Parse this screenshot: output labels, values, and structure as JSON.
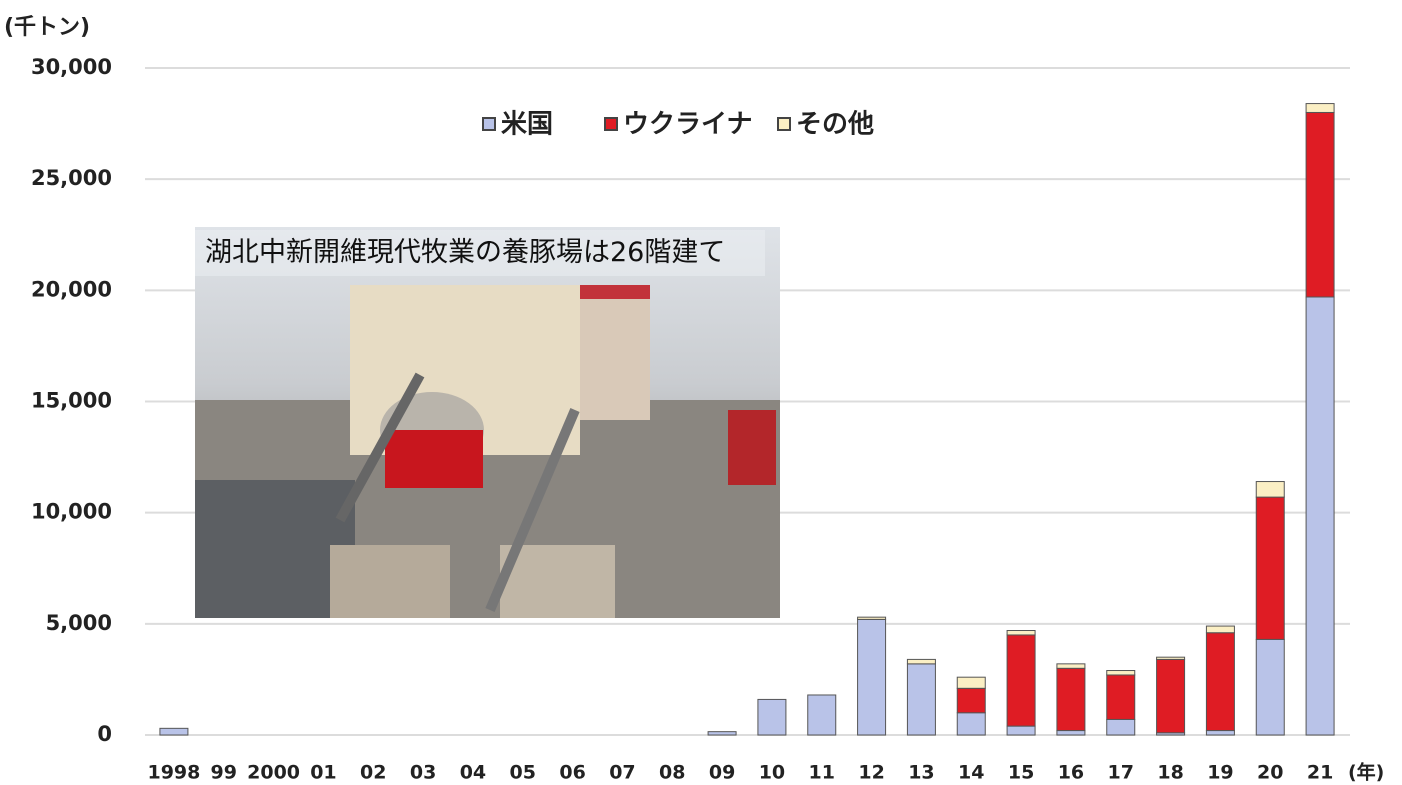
{
  "chart_data": {
    "type": "bar",
    "stacked": true,
    "y_label": "(千トン)",
    "x_label": "(年)",
    "categories": [
      "1998",
      "99",
      "2000",
      "01",
      "02",
      "03",
      "04",
      "05",
      "06",
      "07",
      "08",
      "09",
      "10",
      "11",
      "12",
      "13",
      "14",
      "15",
      "16",
      "17",
      "18",
      "19",
      "20",
      "21"
    ],
    "series": [
      {
        "name": "米国",
        "color": "#b9c3e8",
        "values": [
          300,
          0,
          0,
          0,
          0,
          0,
          0,
          0,
          0,
          0,
          0,
          150,
          1600,
          1800,
          5200,
          3200,
          1000,
          400,
          200,
          700,
          100,
          200,
          4300,
          19700
        ]
      },
      {
        "name": "ウクライナ",
        "color": "#df1c24",
        "values": [
          0,
          0,
          0,
          0,
          0,
          0,
          0,
          0,
          0,
          0,
          0,
          0,
          0,
          0,
          0,
          0,
          1100,
          4100,
          2800,
          2000,
          3300,
          4400,
          6400,
          8300
        ]
      },
      {
        "name": "その他",
        "color": "#fbefc4",
        "values": [
          0,
          0,
          0,
          0,
          0,
          0,
          0,
          0,
          0,
          0,
          0,
          0,
          0,
          0,
          100,
          200,
          500,
          200,
          200,
          200,
          100,
          300,
          700,
          400
        ]
      }
    ],
    "ylim": [
      0,
      30000
    ],
    "yticks": [
      0,
      {
        "value": 5000,
        "label": "5,000"
      },
      {
        "value": 10000,
        "label": "10,000"
      },
      {
        "value": 15000,
        "label": "15,000"
      },
      {
        "value": 20000,
        "label": "20,000"
      },
      {
        "value": 25000,
        "label": "25,000"
      },
      {
        "value": 30000,
        "label": "30,000"
      }
    ],
    "grid": true,
    "legend": "top",
    "annotation": "湖北中新開維現代牧業の養豚場は26階建て"
  }
}
